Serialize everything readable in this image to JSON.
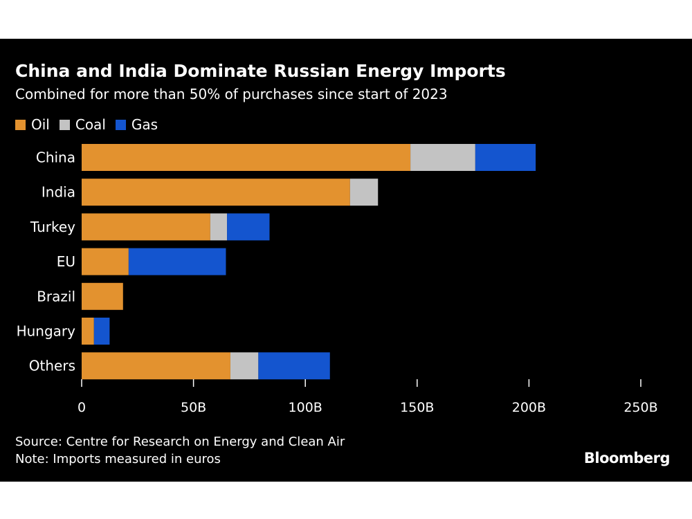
{
  "header": {
    "title": "China and India Dominate Russian Energy Imports",
    "subtitle": "Combined for more than 50% of purchases since start of 2023"
  },
  "footer": {
    "source": "Source: Centre for Research on Energy and Clean Air",
    "note": "Note: Imports measured in euros",
    "brand": "Bloomberg"
  },
  "chart_data": {
    "type": "bar",
    "orientation": "horizontal",
    "stacked": true,
    "categories": [
      "China",
      "India",
      "Turkey",
      "EU",
      "Brazil",
      "Hungary",
      "Others"
    ],
    "series": [
      {
        "name": "Oil",
        "color": "#e3922f",
        "values": [
          147,
          120,
          57.5,
          21,
          18.5,
          5.5,
          66.5
        ]
      },
      {
        "name": "Coal",
        "color": "#c3c3c3",
        "values": [
          29,
          12.5,
          7.5,
          0,
          0,
          0,
          12.5
        ]
      },
      {
        "name": "Gas",
        "color": "#1455cf",
        "values": [
          27,
          0,
          19,
          43.5,
          0,
          7,
          32
        ]
      }
    ],
    "x_ticks": [
      0,
      50,
      100,
      150,
      200,
      250
    ],
    "x_tick_labels": [
      "0",
      "50B",
      "100B",
      "150B",
      "200B",
      "250B"
    ],
    "xlim": [
      0,
      250
    ],
    "xlabel": "",
    "ylabel": "",
    "grid": false,
    "legend_position": "top-left"
  }
}
